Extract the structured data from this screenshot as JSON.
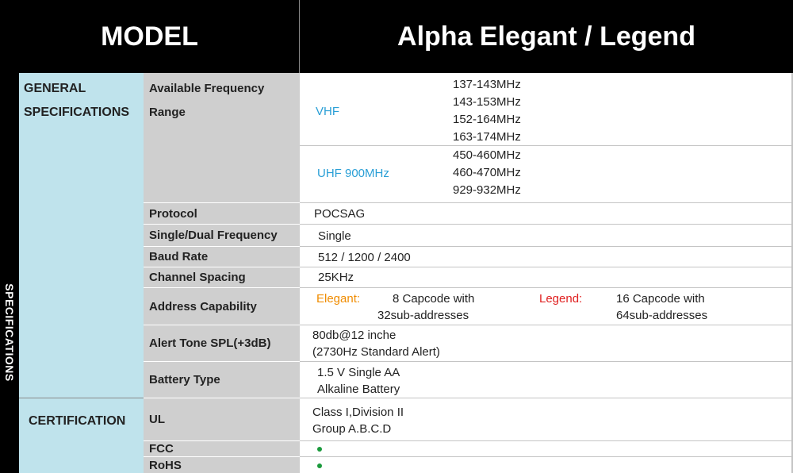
{
  "header": {
    "model_label": "MODEL",
    "product_name": "Alpha Elegant / Legend"
  },
  "sidebar": {
    "label": "SPECIFICATIONS"
  },
  "categories": {
    "general": [
      "GENERAL",
      "SPECIFICATIONS"
    ],
    "certification": "CERTIFICATION"
  },
  "specs": {
    "frequency": {
      "label": [
        "Available Frequency",
        "Range"
      ],
      "vhf_label": "VHF",
      "vhf_values": [
        "137-143MHz",
        "143-153MHz",
        "152-164MHz",
        "163-174MHz"
      ],
      "uhf_label": "UHF 900MHz",
      "uhf_values": [
        "450-460MHz",
        "460-470MHz",
        "929-932MHz"
      ]
    },
    "protocol": {
      "label": "Protocol",
      "value": "POCSAG"
    },
    "single_dual": {
      "label": "Single/Dual Frequency",
      "value": "Single"
    },
    "baud_rate": {
      "label": "Baud Rate",
      "value": "512 / 1200 / 2400"
    },
    "channel_spacing": {
      "label": "Channel Spacing",
      "value": "25KHz"
    },
    "address": {
      "label": "Address Capability",
      "elegant_label": "Elegant:",
      "elegant_value": [
        "8 Capcode with",
        "32sub-addresses"
      ],
      "legend_label": "Legend:",
      "legend_value": [
        "16 Capcode with",
        "64sub-addresses"
      ]
    },
    "alert_tone": {
      "label": "Alert Tone SPL(+3dB)",
      "value": [
        "80db@12 inche",
        "(2730Hz Standard Alert)"
      ]
    },
    "battery": {
      "label": "Battery Type",
      "value": [
        "1.5 V Single AA",
        "Alkaline Battery"
      ]
    },
    "ul": {
      "label": "UL",
      "value": [
        "Class I,Division II",
        "Group A.B.C.D"
      ]
    },
    "fcc": {
      "label": "FCC"
    },
    "rohs": {
      "label": "RoHS"
    }
  },
  "colors": {
    "header_bg": "#000000",
    "category_bg": "#bfe3ec",
    "spec_bg": "#cfcfcf",
    "band_label": "#2a9fd6",
    "elegant": "#f08c00",
    "legend": "#e02020",
    "check_dot": "#1a9a3c"
  }
}
